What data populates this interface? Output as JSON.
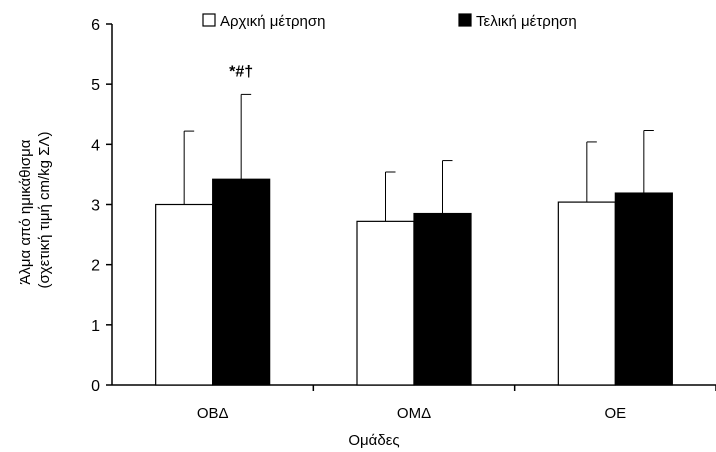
{
  "chart_data": {
    "type": "bar",
    "categories": [
      "ΟΒΔ",
      "ΟΜΔ",
      "ΟΕ"
    ],
    "series": [
      {
        "name": "Αρχική μέτρηση",
        "values": [
          3.0,
          2.72,
          3.04
        ],
        "errors": [
          1.22,
          0.82,
          1.0
        ],
        "color": "#ffffff"
      },
      {
        "name": "Τελική μέτρηση",
        "values": [
          3.42,
          2.85,
          3.19
        ],
        "errors": [
          1.41,
          0.88,
          1.04
        ],
        "color": "#000000"
      }
    ],
    "xlabel": "Ομάδες",
    "ylabel_line1": "Άλμα από ημικάθισμα",
    "ylabel_line2": "(σχετική τιμή cm/kg ΣΛ)",
    "ylim": [
      0,
      6
    ],
    "yticks": [
      0,
      1,
      2,
      3,
      4,
      5,
      6
    ],
    "grid": false,
    "legend_position": "top",
    "annotations": [
      {
        "text": "*#†",
        "category": "ΟΒΔ",
        "series": "Τελική μέτρηση"
      }
    ]
  }
}
